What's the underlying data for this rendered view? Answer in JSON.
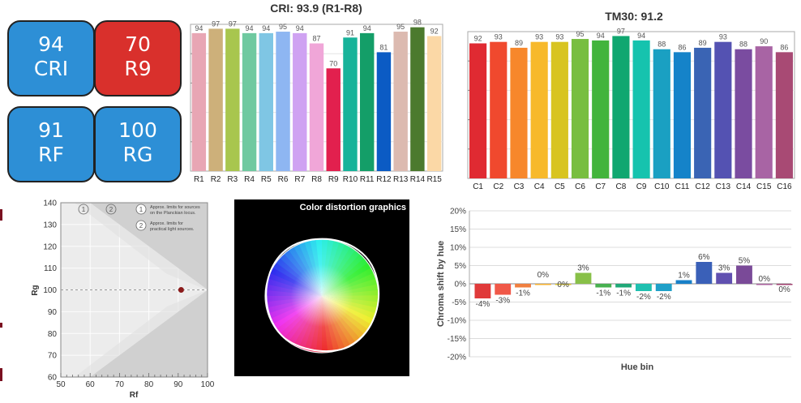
{
  "tiles": [
    {
      "value": "94",
      "label": "CRI",
      "color": "#2d8fd6"
    },
    {
      "value": "70",
      "label": "R9",
      "color": "#d9302c"
    },
    {
      "value": "91",
      "label": "RF",
      "color": "#2d8fd6"
    },
    {
      "value": "100",
      "label": "RG",
      "color": "#2d8fd6"
    }
  ],
  "distortion": {
    "title": "Color distortion graphics"
  },
  "rfrg_legend": {
    "item1_num": "1",
    "item1_line1": "Approx. limits for sources",
    "item1_line2": "on the Planckian locus.",
    "item2_num": "2",
    "item2_line1": "Approx. limits for",
    "item2_line2": "practical light sources."
  },
  "chart_data": [
    {
      "type": "bar",
      "title": "CRI: 93.9 (R1-R8)",
      "categories": [
        "R1",
        "R2",
        "R3",
        "R4",
        "R5",
        "R6",
        "R7",
        "R8",
        "R9",
        "R10",
        "R11",
        "R12",
        "R13",
        "R14",
        "R15"
      ],
      "values": [
        94,
        97,
        97,
        94,
        94,
        95,
        94,
        87,
        70,
        91,
        94,
        81,
        95,
        98,
        92
      ],
      "colors": [
        "#e8a6b4",
        "#cdb07a",
        "#a8c64e",
        "#6fc9a0",
        "#7fc6e4",
        "#8eb6f2",
        "#cfa2f2",
        "#f0a6d8",
        "#e2204e",
        "#17b39a",
        "#149e68",
        "#0b5bc4",
        "#dcbab0",
        "#4c7a2e",
        "#fbd8a6"
      ],
      "ylim": [
        0,
        100
      ],
      "grid": true
    },
    {
      "type": "bar",
      "title": "TM30: 91.2",
      "categories": [
        "C1",
        "C2",
        "C3",
        "C4",
        "C5",
        "C6",
        "C7",
        "C8",
        "C9",
        "C10",
        "C11",
        "C12",
        "C13",
        "C14",
        "C15",
        "C16"
      ],
      "values": [
        92,
        93,
        89,
        93,
        93,
        95,
        94,
        97,
        94,
        88,
        86,
        89,
        93,
        88,
        90,
        86
      ],
      "colors": [
        "#e02a32",
        "#f0492e",
        "#f7872b",
        "#f7b92b",
        "#d8c420",
        "#78be40",
        "#42b43c",
        "#10a770",
        "#16c3ae",
        "#1aa0c2",
        "#1583c9",
        "#3a64b4",
        "#5452b2",
        "#7a4ca0",
        "#a864a4",
        "#a84a74"
      ],
      "ylim": [
        0,
        100
      ],
      "grid": true
    },
    {
      "type": "scatter",
      "xlabel": "Rf",
      "ylabel": "Rg",
      "xlim": [
        50,
        100
      ],
      "ylim": [
        60,
        140
      ],
      "xticks": [
        50,
        60,
        70,
        80,
        90,
        100
      ],
      "yticks": [
        60,
        70,
        80,
        90,
        100,
        110,
        120,
        130,
        140
      ],
      "points": [
        {
          "x": 91,
          "y": 100
        }
      ],
      "point_color": "#8b1a1a",
      "reference_y": 100
    },
    {
      "type": "bar",
      "xlabel": "Hue bin",
      "ylabel": "Chroma shift by hue",
      "ylim": [
        -20,
        20
      ],
      "yticks": [
        -20,
        -15,
        -10,
        -5,
        0,
        5,
        10,
        15,
        20
      ],
      "tick_labels": [
        "-20%",
        "-15%",
        "-10%",
        "-5%",
        "0%",
        "5%",
        "10%",
        "15%",
        "20%"
      ],
      "values": [
        -4,
        -3,
        -1,
        0,
        0,
        3,
        -1,
        -1,
        -2,
        -2,
        1,
        6,
        3,
        5,
        0,
        0
      ],
      "labels": [
        "-4%",
        "-3%",
        "-1%",
        "0%",
        "0%",
        "3%",
        "-1%",
        "-1%",
        "-2%",
        "-2%",
        "1%",
        "6%",
        "3%",
        "5%",
        "0%",
        "0%"
      ],
      "colors": [
        "#e03a3a",
        "#f05848",
        "#f08040",
        "#f5b030",
        "#d8c430",
        "#88c048",
        "#48b050",
        "#20a878",
        "#20c0b0",
        "#20a0c8",
        "#1880c8",
        "#3a60b8",
        "#6050b0",
        "#7a4a98",
        "#a8609c",
        "#a04070"
      ],
      "grid": true
    }
  ]
}
